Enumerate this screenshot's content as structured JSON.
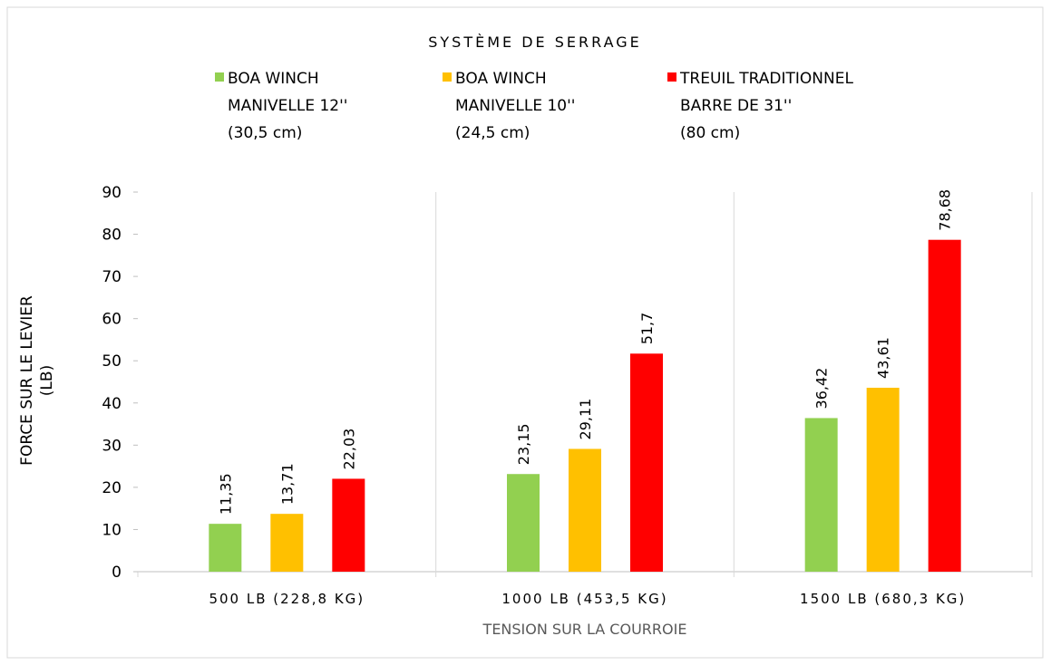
{
  "chart_data": {
    "type": "bar",
    "legend_title": "SYSTÈME DE SERRAGE",
    "categories": [
      "500 LB (228,8 KG)",
      "1000 LB (453,5 KG)",
      "1500 LB (680,3 KG)"
    ],
    "series": [
      {
        "name": "BOA WINCH\nMANIVELLE 12''\n(30,5 cm)",
        "color": "#92d050",
        "values": [
          11.35,
          23.15,
          36.42
        ],
        "value_labels": [
          "11,35",
          "23,15",
          "36,42"
        ]
      },
      {
        "name": "BOA WINCH\nMANIVELLE 10''\n(24,5 cm)",
        "color": "#ffc000",
        "values": [
          13.71,
          29.11,
          43.61
        ],
        "value_labels": [
          "13,71",
          "29,11",
          "43,61"
        ]
      },
      {
        "name": "TREUIL TRADITIONNEL\nBARRE DE 31''\n(80 cm)",
        "color": "#ff0000",
        "values": [
          22.03,
          51.7,
          78.68
        ],
        "value_labels": [
          "22,03",
          "51,7",
          "78,68"
        ]
      }
    ],
    "ylabel": "FORCE SUR LE LEVIER\n(LB)",
    "xlabel": "TENSION SUR LA COURROIE",
    "ylim": [
      0,
      90
    ],
    "yticks": [
      0,
      10,
      20,
      30,
      40,
      50,
      60,
      70,
      80,
      90
    ],
    "legend": "top"
  }
}
